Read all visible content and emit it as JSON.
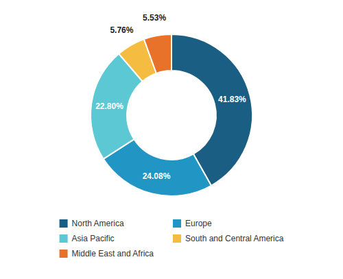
{
  "chart_data": {
    "type": "donut",
    "categories": [
      "North America",
      "Europe",
      "Asia Pacific",
      "South and Central America",
      "Middle East and Africa"
    ],
    "values": [
      41.83,
      24.08,
      22.8,
      5.76,
      5.53
    ],
    "value_labels": [
      "41.83%",
      "24.08%",
      "22.80%",
      "5.76%",
      "5.53%"
    ],
    "colors": [
      "#1b5e84",
      "#2196c4",
      "#5bc8d4",
      "#f5bc42",
      "#e8722a"
    ],
    "data_labels": true,
    "legend": "bottom"
  }
}
